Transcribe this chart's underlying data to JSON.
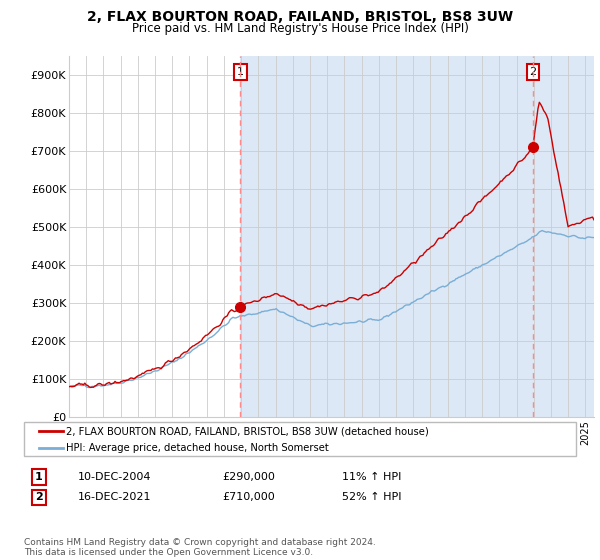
{
  "title": "2, FLAX BOURTON ROAD, FAILAND, BRISTOL, BS8 3UW",
  "subtitle": "Price paid vs. HM Land Registry's House Price Index (HPI)",
  "ylabel_ticks": [
    "£0",
    "£100K",
    "£200K",
    "£300K",
    "£400K",
    "£500K",
    "£600K",
    "£700K",
    "£800K",
    "£900K"
  ],
  "ytick_values": [
    0,
    100000,
    200000,
    300000,
    400000,
    500000,
    600000,
    700000,
    800000,
    900000
  ],
  "ylim": [
    0,
    950000
  ],
  "red_line_color": "#cc0000",
  "blue_line_color": "#7aaed6",
  "grid_color": "#cccccc",
  "bg_color": "#ffffff",
  "bg_shaded_color": "#dce8f5",
  "transaction1_date": "10-DEC-2004",
  "transaction1_price": "£290,000",
  "transaction1_hpi": "11% ↑ HPI",
  "transaction1_label": "1",
  "transaction1_year": 2004.95,
  "transaction1_value": 290000,
  "transaction2_date": "16-DEC-2021",
  "transaction2_price": "£710,000",
  "transaction2_hpi": "52% ↑ HPI",
  "transaction2_label": "2",
  "transaction2_year": 2021.95,
  "transaction2_value": 710000,
  "legend_line1": "2, FLAX BOURTON ROAD, FAILAND, BRISTOL, BS8 3UW (detached house)",
  "legend_line2": "HPI: Average price, detached house, North Somerset",
  "footer": "Contains HM Land Registry data © Crown copyright and database right 2024.\nThis data is licensed under the Open Government Licence v3.0.",
  "xmin": 1995,
  "xmax": 2025.5
}
